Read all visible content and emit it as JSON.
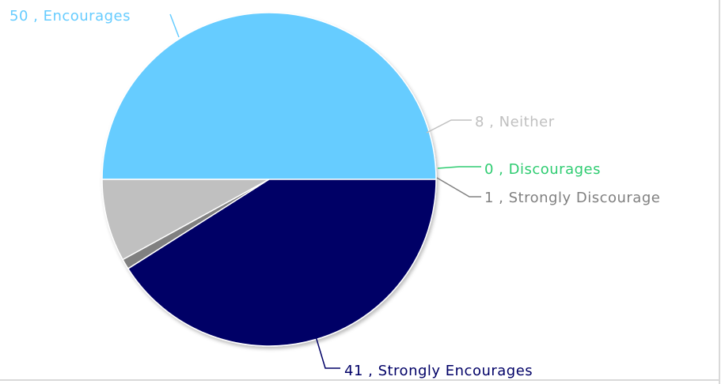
{
  "chart_data": {
    "type": "pie",
    "title": "",
    "slices": [
      {
        "label": "Encourages",
        "value": 50,
        "color": "#66ccff"
      },
      {
        "label": "Neither",
        "value": 8,
        "color": "#c0c0c0"
      },
      {
        "label": "Discourages",
        "value": 0,
        "color": "#2ecc71"
      },
      {
        "label": "Strongly Discourage",
        "value": 1,
        "color": "#808080"
      },
      {
        "label": "Strongly Encourages",
        "value": 41,
        "color": "#000066"
      }
    ],
    "label_format": "{value} , {label}",
    "label_colors": {
      "Encourages": "#66ccff",
      "Neither": "#c0c0c0",
      "Discourages": "#2ecc71",
      "Strongly Discourage": "#808080",
      "Strongly Encourages": "#000066"
    }
  }
}
